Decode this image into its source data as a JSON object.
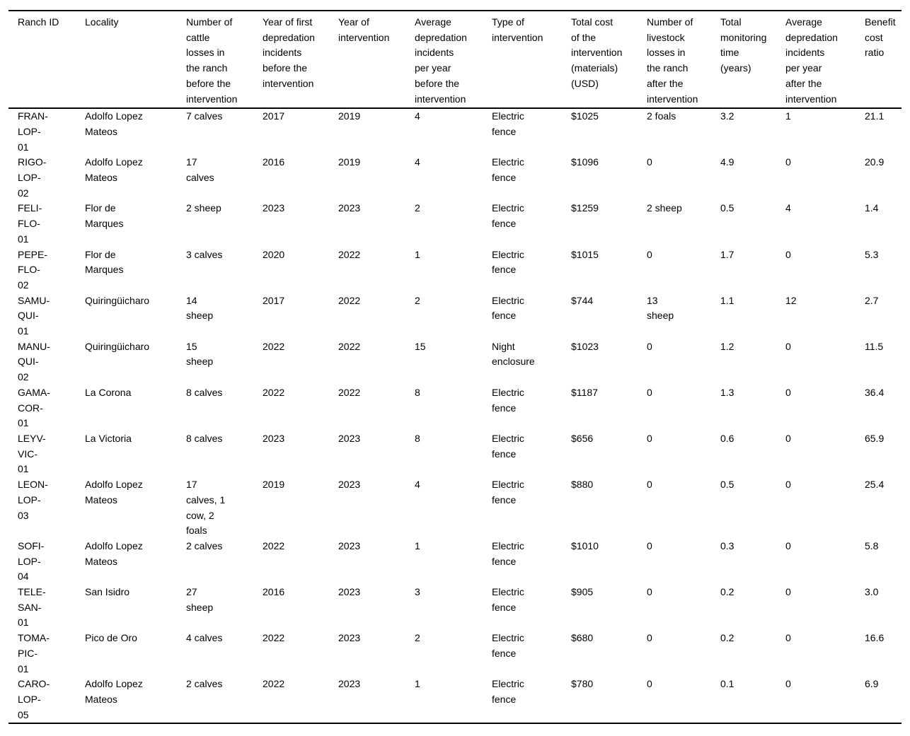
{
  "page": {
    "background_color": "#ffffff",
    "text_color": "#000000",
    "rule_color": "#000000"
  },
  "table": {
    "columns": [
      {
        "id": "ranch-id",
        "label": "Ranch ID"
      },
      {
        "id": "locality",
        "label": "Locality"
      },
      {
        "id": "cattle-losses-before",
        "label": "Number of\ncattle\nlosses in\nthe ranch\nbefore the\nintervention"
      },
      {
        "id": "year-first-depredation",
        "label": "Year of first\ndepredation\nincidents\nbefore the\nintervention"
      },
      {
        "id": "year-of-intervention",
        "label": "Year of\nintervention"
      },
      {
        "id": "avg-depredation-before",
        "label": "Average\ndepredation\nincidents\nper year\nbefore the\nintervention"
      },
      {
        "id": "type-of-intervention",
        "label": "Type of\nintervention"
      },
      {
        "id": "total-cost",
        "label": "Total cost\nof the\nintervention\n(materials)\n(USD)"
      },
      {
        "id": "livestock-losses-after",
        "label": "Number of\nlivestock\nlosses in\nthe ranch\nafter the\nintervention"
      },
      {
        "id": "monitoring-time",
        "label": "Total\nmonitoring\ntime\n(years)"
      },
      {
        "id": "avg-depredation-after",
        "label": "Average\ndepredation\nincidents\nper year\nafter the\nintervention"
      },
      {
        "id": "benefit-cost-ratio",
        "label": "Benefit\ncost\nratio"
      }
    ],
    "rows": [
      [
        "FRAN-\nLOP-\n01",
        "Adolfo Lopez\nMateos",
        "7 calves",
        "2017",
        "2019",
        "4",
        "Electric\nfence",
        "$1025",
        "2 foals",
        "3.2",
        "1",
        "21.1"
      ],
      [
        "RIGO-\nLOP-\n02",
        "Adolfo Lopez\nMateos",
        "17\ncalves",
        "2016",
        "2019",
        "4",
        "Electric\nfence",
        "$1096",
        "0",
        "4.9",
        "0",
        "20.9"
      ],
      [
        "FELI-\nFLO-\n01",
        "Flor de\nMarques",
        "2 sheep",
        "2023",
        "2023",
        "2",
        "Electric\nfence",
        "$1259",
        "2 sheep",
        "0.5",
        "4",
        "1.4"
      ],
      [
        "PEPE-\nFLO-\n02",
        "Flor de\nMarques",
        "3 calves",
        "2020",
        "2022",
        "1",
        "Electric\nfence",
        "$1015",
        "0",
        "1.7",
        "0",
        "5.3"
      ],
      [
        "SAMU-\nQUI-\n01",
        "Quiringüicharo",
        "14\nsheep",
        "2017",
        "2022",
        "2",
        "Electric\nfence",
        "$744",
        "13\nsheep",
        "1.1",
        "12",
        "2.7"
      ],
      [
        "MANU-\nQUI-\n02",
        "Quiringüicharo",
        "15\nsheep",
        "2022",
        "2022",
        "15",
        "Night\nenclosure",
        "$1023",
        "0",
        "1.2",
        "0",
        "11.5"
      ],
      [
        "GAMA-\nCOR-\n01",
        "La Corona",
        "8 calves",
        "2022",
        "2022",
        "8",
        "Electric\nfence",
        "$1187",
        "0",
        "1.3",
        "0",
        "36.4"
      ],
      [
        "LEYV-\nVIC-\n01",
        "La Victoria",
        "8 calves",
        "2023",
        "2023",
        "8",
        "Electric\nfence",
        "$656",
        "0",
        "0.6",
        "0",
        "65.9"
      ],
      [
        "LEON-\nLOP-\n03",
        "Adolfo Lopez\nMateos",
        "17\ncalves, 1\ncow, 2\nfoals",
        "2019",
        "2023",
        "4",
        "Electric\nfence",
        "$880",
        "0",
        "0.5",
        "0",
        "25.4"
      ],
      [
        "SOFI-\nLOP-\n04",
        "Adolfo Lopez\nMateos",
        "2 calves",
        "2022",
        "2023",
        "1",
        "Electric\nfence",
        "$1010",
        "0",
        "0.3",
        "0",
        "5.8"
      ],
      [
        "TELE-\nSAN-\n01",
        "San Isidro",
        "27\nsheep",
        "2016",
        "2023",
        "3",
        "Electric\nfence",
        "$905",
        "0",
        "0.2",
        "0",
        "3.0"
      ],
      [
        "TOMA-\nPIC-\n01",
        "Pico de Oro",
        "4 calves",
        "2022",
        "2023",
        "2",
        "Electric\nfence",
        "$680",
        "0",
        "0.2",
        "0",
        "16.6"
      ],
      [
        "CARO-\nLOP-\n05",
        "Adolfo Lopez\nMateos",
        "2 calves",
        "2022",
        "2023",
        "1",
        "Electric\nfence",
        "$780",
        "0",
        "0.1",
        "0",
        "6.9"
      ]
    ]
  }
}
